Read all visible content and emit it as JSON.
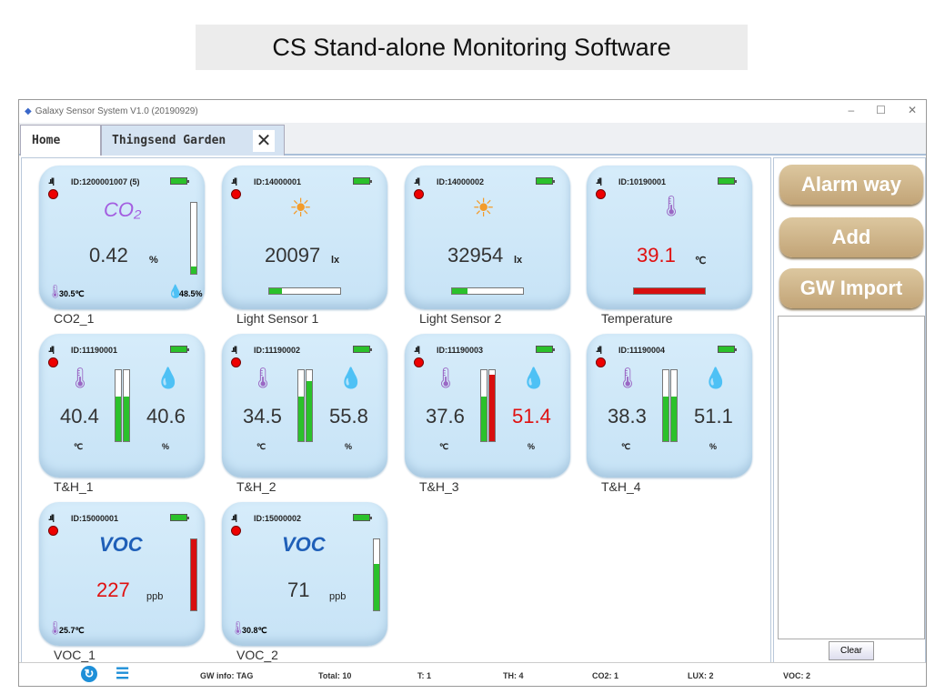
{
  "banner": "CS Stand-alone Monitoring Software",
  "window": {
    "title": "Galaxy Sensor System V1.0  (20190929)",
    "min": "–",
    "max": "☐",
    "close": "✕"
  },
  "tabs": [
    {
      "label": "Home"
    },
    {
      "label": "Thingsend Garden",
      "close": "✕"
    }
  ],
  "co2": {
    "id": "ID:1200001007 (5)",
    "icon": "CO₂",
    "value": "0.42",
    "unit": "%",
    "temp": "30.5℃",
    "hum": "48.5%",
    "bar": 0.1,
    "name": "CO2_1"
  },
  "light": [
    {
      "id": "ID:14000001",
      "value": "20097",
      "unit": "lx",
      "bar": 0.18,
      "name": "Light Sensor 1"
    },
    {
      "id": "ID:14000002",
      "value": "32954",
      "unit": "lx",
      "bar": 0.22,
      "name": "Light Sensor 2"
    }
  ],
  "temp": {
    "id": "ID:10190001",
    "value": "39.1",
    "unit": "℃",
    "bar": 1.0,
    "name": "Temperature"
  },
  "th": [
    {
      "id": "ID:11190001",
      "t": "40.4",
      "h": "40.6",
      "tbar": 0.63,
      "hbar": 0.63,
      "name": "T&H_1",
      "talarm": false,
      "halarm": false
    },
    {
      "id": "ID:11190002",
      "t": "34.5",
      "h": "55.8",
      "tbar": 0.63,
      "hbar": 0.85,
      "name": "T&H_2",
      "talarm": false,
      "halarm": false
    },
    {
      "id": "ID:11190003",
      "t": "37.6",
      "h": "51.4",
      "tbar": 0.63,
      "hbar": 0.93,
      "name": "T&H_3",
      "talarm": false,
      "halarm": true
    },
    {
      "id": "ID:11190004",
      "t": "38.3",
      "h": "51.1",
      "tbar": 0.63,
      "hbar": 0.63,
      "name": "T&H_4",
      "talarm": false,
      "halarm": false
    }
  ],
  "th_units": {
    "t": "℃",
    "h": "%"
  },
  "voc": [
    {
      "id": "ID:15000001",
      "icon": "VOC",
      "value": "227",
      "unit": "ppb",
      "temp": "25.7℃",
      "bar": 1.0,
      "alarm": true,
      "name": "VOC_1"
    },
    {
      "id": "ID:15000002",
      "icon": "VOC",
      "value": "71",
      "unit": "ppb",
      "temp": "30.8℃",
      "bar": 0.65,
      "alarm": false,
      "name": "VOC_2"
    }
  ],
  "side": {
    "alarm": "Alarm way",
    "add": "Add",
    "import": "GW Import",
    "clear": "Clear"
  },
  "status": {
    "gw": "GW info: TAG",
    "total": "Total: 10",
    "t": "T:  1",
    "th": "TH:  4",
    "co2": "CO2:  1",
    "lux": "LUX:  2",
    "voc": "VOC:  2"
  },
  "colors": {
    "alarm": "#e01010",
    "ok": "#2bc12b",
    "card": "#cfe7f8",
    "button": "#cbb088"
  }
}
